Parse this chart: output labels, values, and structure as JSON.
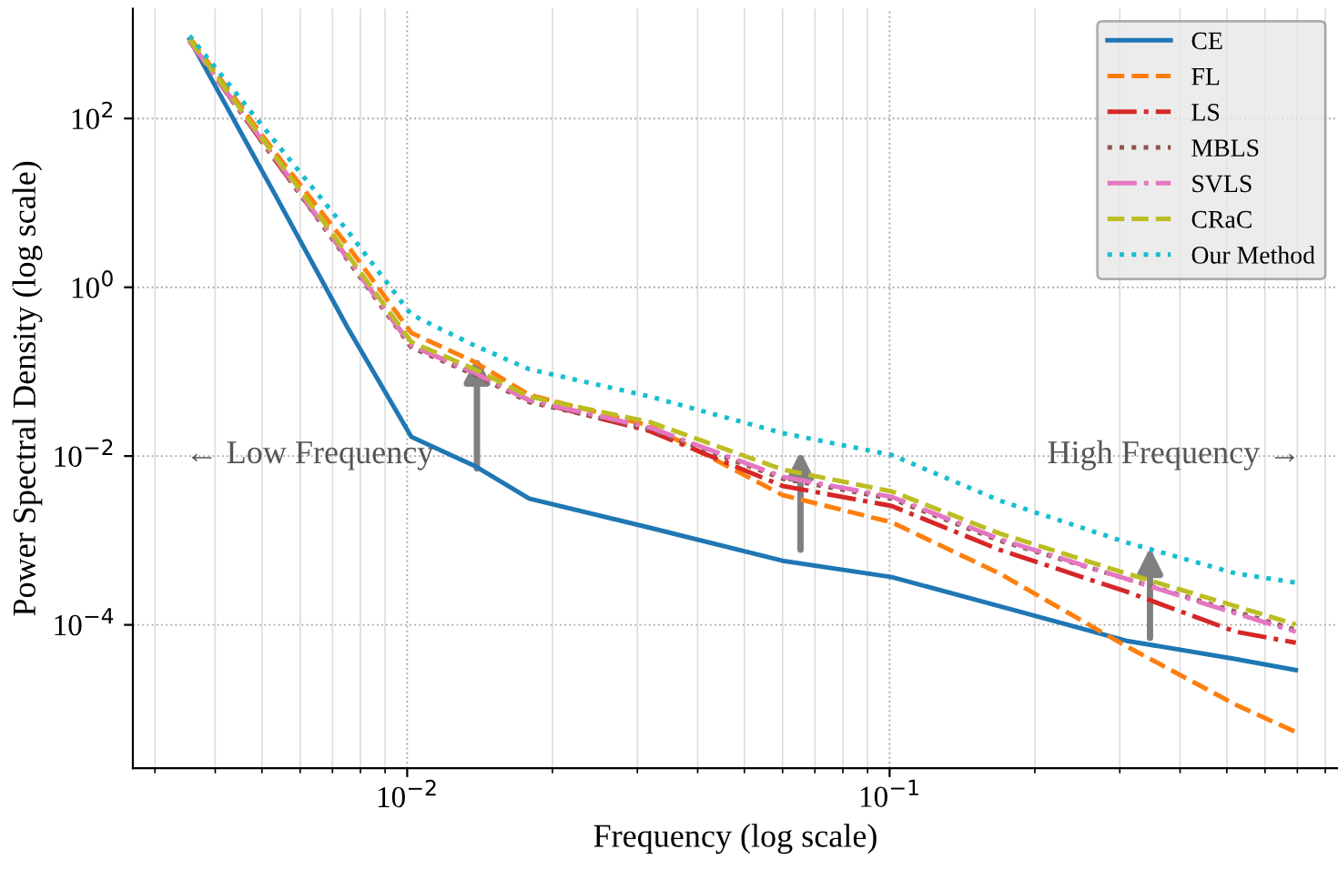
{
  "chart_data": {
    "type": "line",
    "xlabel": "Frequency (log scale)",
    "ylabel": "Power Spectral Density (log scale)",
    "log": "xy",
    "grid": true,
    "legend": "top right",
    "x": [
      0.00354,
      0.00532,
      0.00752,
      0.0102,
      0.0138,
      0.0179,
      0.0319,
      0.06,
      0.101,
      0.169,
      0.31,
      0.522,
      0.695
    ],
    "xlim": [
      0.0027,
      0.85
    ],
    "xticks": [
      {
        "value": 0.01,
        "label": "10$^{−2}$"
      },
      {
        "value": 0.1,
        "label": "10$^{−1}$"
      }
    ],
    "ylim": [
      2e-06,
      2000
    ],
    "yticks": [
      {
        "value": 0.0001,
        "label": "10$^{−4}$"
      },
      {
        "value": 0.01,
        "label": "10$^{−2}$"
      },
      {
        "value": 1,
        "label": "10$^{0}$"
      },
      {
        "value": 100,
        "label": "10$^{2}$"
      }
    ],
    "series": [
      {
        "name": "CE",
        "color": "#1f77b4",
        "line_style": "solid",
        "values": [
          865,
          12.6,
          0.335,
          0.0169,
          0.00764,
          0.00313,
          0.00141,
          0.000575,
          0.000368,
          0.000166,
          6.46e-05,
          3.93e-05,
          2.91e-05
        ]
      },
      {
        "name": "FL",
        "color": "#ff7f0e",
        "line_style": "dashed",
        "values": [
          910,
          39.6,
          3.14,
          0.288,
          0.13,
          0.0532,
          0.0228,
          0.00345,
          0.00164,
          0.000406,
          5.56e-05,
          1.13e-05,
          5.37e-06
        ]
      },
      {
        "name": "LS",
        "color": "#d62728",
        "line_style": "dashdot",
        "values": [
          824,
          32.5,
          2.22,
          0.204,
          0.0966,
          0.0458,
          0.0197,
          0.00443,
          0.00256,
          0.000776,
          0.000247,
          8.28e-05,
          6.14e-05
        ]
      },
      {
        "name": "MBLS",
        "color": "#8c564b",
        "line_style": "dotted",
        "values": [
          824,
          32.5,
          2.11,
          0.194,
          0.0919,
          0.0436,
          0.0207,
          0.0054,
          0.00312,
          0.000995,
          0.00035,
          0.000143,
          8.69e-05
        ]
      },
      {
        "name": "SVLS",
        "color": "#e377c2",
        "line_style": "dashdot",
        "values": [
          824,
          34.2,
          2.22,
          0.204,
          0.0966,
          0.0458,
          0.0217,
          0.00568,
          0.00328,
          0.00104,
          0.00035,
          0.000136,
          8.28e-05
        ]
      },
      {
        "name": "CRaC",
        "color": "#bcbd22",
        "line_style": "dashed",
        "values": [
          865,
          35.9,
          2.45,
          0.225,
          0.107,
          0.0506,
          0.0252,
          0.00692,
          0.00381,
          0.00121,
          0.000406,
          0.000166,
          0.000101
        ]
      },
      {
        "name": "Our Method",
        "color": "#17becf",
        "line_style": "dotted",
        "values": [
          957,
          53.5,
          4.67,
          0.474,
          0.204,
          0.107,
          0.0506,
          0.0187,
          0.0103,
          0.00297,
          0.000946,
          0.000406,
          0.000317
        ]
      }
    ],
    "annotations": [
      "← Low Frequency",
      "High Frequency →"
    ]
  }
}
